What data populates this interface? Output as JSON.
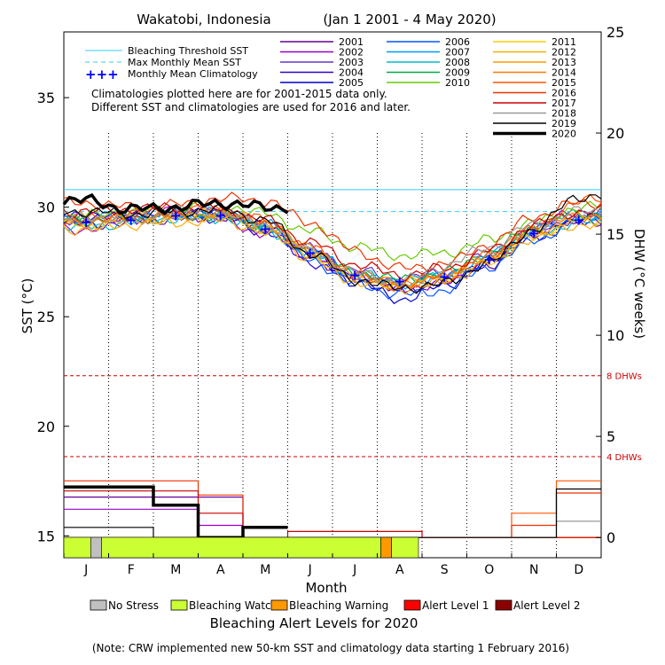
{
  "chart_data": {
    "type": "line",
    "title": "Wakatobi, Indonesia",
    "date_range": "(Jan 1 2001 - 4 May 2020)",
    "xlabel": "Month",
    "ylabel_left": "SST (°C)",
    "ylabel_right": "DHW (°C weeks)",
    "ylim_left": [
      14,
      38
    ],
    "ylim_right": [
      -1,
      25
    ],
    "left_ticks": [
      "15",
      "20",
      "25",
      "30",
      "35"
    ],
    "right_ticks": [
      "0",
      "5",
      "10",
      "15",
      "20",
      "25"
    ],
    "months": [
      "J",
      "F",
      "M",
      "A",
      "M",
      "J",
      "J",
      "A",
      "S",
      "O",
      "N",
      "D"
    ],
    "bleaching_threshold_sst": 30.8,
    "max_monthly_mean_sst": 29.8,
    "dhw_thresholds": [
      {
        "value": 4,
        "label": "4 DHWs"
      },
      {
        "value": 8,
        "label": "8 DHWs"
      }
    ],
    "legend_left": [
      {
        "label": "Bleaching Threshold SST",
        "color": "#33ccff",
        "style": "solid"
      },
      {
        "label": "Max Monthly Mean SST",
        "color": "#33ccff",
        "style": "dashed"
      },
      {
        "label": "Monthly Mean Climatology",
        "color": "#0000ff",
        "style": "plus"
      }
    ],
    "notes": [
      "Climatologies plotted here are for 2001-2015 data only.",
      "Different SST and climatologies are used for 2016 and later."
    ],
    "climatology": [
      29.3,
      29.4,
      29.6,
      29.6,
      29.0,
      27.9,
      26.9,
      26.6,
      26.8,
      27.6,
      28.8,
      29.4
    ],
    "series": [
      {
        "name": "2001",
        "color": "#660099",
        "width": 1.2,
        "sst": [
          29.2,
          29.3,
          29.5,
          29.6,
          29.0,
          27.7,
          26.8,
          26.4,
          26.7,
          27.4,
          28.7,
          29.3
        ],
        "dhw": [
          2,
          2,
          2,
          2,
          0,
          0,
          0,
          0,
          0,
          0,
          0,
          0
        ]
      },
      {
        "name": "2002",
        "color": "#9900cc",
        "width": 1.2,
        "sst": [
          29.0,
          29.5,
          29.8,
          29.4,
          28.8,
          27.8,
          26.9,
          26.3,
          26.5,
          27.6,
          29.1,
          29.8
        ],
        "dhw": [
          1.4,
          1.4,
          1.4,
          0.6,
          0,
          0,
          0,
          0,
          0,
          0,
          0,
          0
        ]
      },
      {
        "name": "2003",
        "color": "#6633cc",
        "width": 1.2,
        "sst": [
          29.4,
          29.6,
          29.7,
          29.8,
          29.2,
          28.1,
          27.1,
          26.7,
          27.0,
          27.8,
          29.0,
          29.5
        ],
        "dhw": [
          0,
          0,
          0,
          0,
          0,
          0,
          0,
          0,
          0,
          0,
          0,
          0
        ]
      },
      {
        "name": "2004",
        "color": "#3300cc",
        "width": 1.2,
        "sst": [
          29.6,
          29.5,
          29.6,
          29.5,
          28.9,
          27.5,
          26.7,
          26.2,
          26.6,
          27.5,
          28.7,
          29.4
        ],
        "dhw": [
          0,
          0,
          0,
          0,
          0,
          0,
          0,
          0,
          0,
          0,
          0,
          0
        ]
      },
      {
        "name": "2005",
        "color": "#0000cc",
        "width": 1.2,
        "sst": [
          29.5,
          29.7,
          29.8,
          29.7,
          29.1,
          27.9,
          26.6,
          25.8,
          26.4,
          27.5,
          28.9,
          29.5
        ],
        "dhw": [
          0,
          0,
          0,
          0,
          0,
          0,
          0,
          0,
          0,
          0,
          0,
          0
        ]
      },
      {
        "name": "2006",
        "color": "#0055ff",
        "width": 1.2,
        "sst": [
          29.3,
          29.4,
          29.6,
          29.7,
          29.0,
          27.6,
          26.5,
          26.0,
          26.2,
          27.3,
          28.5,
          29.4
        ],
        "dhw": [
          0,
          0,
          0,
          0,
          0,
          0,
          0,
          0,
          0,
          0,
          0,
          0
        ]
      },
      {
        "name": "2007",
        "color": "#0099ff",
        "width": 1.2,
        "sst": [
          29.5,
          29.6,
          29.6,
          29.8,
          29.2,
          28.0,
          26.9,
          26.5,
          26.8,
          27.8,
          29.0,
          29.6
        ],
        "dhw": [
          0,
          0,
          0,
          0,
          0,
          0,
          0,
          0,
          0,
          0,
          0,
          0
        ]
      },
      {
        "name": "2008",
        "color": "#00bbcc",
        "width": 1.2,
        "sst": [
          29.1,
          29.3,
          29.5,
          29.5,
          29.0,
          27.9,
          27.0,
          26.6,
          26.9,
          27.7,
          28.8,
          29.3
        ],
        "dhw": [
          0,
          0,
          0,
          0,
          0,
          0,
          0,
          0,
          0,
          0,
          0,
          0
        ]
      },
      {
        "name": "2009",
        "color": "#00aa44",
        "width": 1.2,
        "sst": [
          29.4,
          29.5,
          29.6,
          29.6,
          29.1,
          28.0,
          27.0,
          26.7,
          27.0,
          27.9,
          29.1,
          29.7
        ],
        "dhw": [
          0,
          0,
          0,
          0,
          0,
          0,
          0,
          0,
          0,
          0,
          0,
          0
        ]
      },
      {
        "name": "2010",
        "color": "#66cc00",
        "width": 1.2,
        "sst": [
          29.6,
          29.8,
          30.0,
          30.1,
          29.7,
          28.9,
          28.2,
          27.8,
          27.9,
          28.5,
          29.3,
          30.0
        ],
        "dhw": [
          0,
          0,
          0,
          0,
          0,
          0,
          0,
          0,
          0,
          0,
          0,
          0
        ]
      },
      {
        "name": "2011",
        "color": "#ffcc00",
        "width": 1.2,
        "sst": [
          29.2,
          29.4,
          29.5,
          29.6,
          29.0,
          27.8,
          26.8,
          26.4,
          26.7,
          27.6,
          28.7,
          29.4
        ],
        "dhw": [
          0,
          0,
          0,
          0,
          0,
          0,
          0,
          0,
          0,
          0,
          0,
          0
        ]
      },
      {
        "name": "2012",
        "color": "#ffaa00",
        "width": 1.2,
        "sst": [
          29.0,
          29.2,
          29.3,
          29.4,
          28.9,
          27.7,
          26.6,
          26.3,
          26.6,
          27.5,
          28.6,
          29.2
        ],
        "dhw": [
          0,
          0,
          0,
          0,
          0,
          0,
          0,
          0,
          0,
          0,
          0,
          0
        ]
      },
      {
        "name": "2013",
        "color": "#ff9900",
        "width": 1.2,
        "sst": [
          29.5,
          29.6,
          29.7,
          29.8,
          29.3,
          28.1,
          27.0,
          26.5,
          26.8,
          27.7,
          28.9,
          29.5
        ],
        "dhw": [
          0,
          0,
          0,
          0,
          0,
          0,
          0,
          0,
          0,
          0,
          0,
          0
        ]
      },
      {
        "name": "2014",
        "color": "#ff7700",
        "width": 1.2,
        "sst": [
          29.3,
          29.5,
          29.6,
          29.7,
          29.2,
          28.0,
          26.9,
          26.5,
          26.9,
          27.8,
          29.0,
          29.6
        ],
        "dhw": [
          0,
          0,
          0,
          0,
          0,
          0,
          0,
          0,
          0,
          0,
          0,
          0
        ]
      },
      {
        "name": "2015",
        "color": "#ff5500",
        "width": 1.2,
        "sst": [
          29.4,
          29.7,
          29.8,
          29.9,
          29.4,
          28.1,
          26.9,
          26.4,
          26.9,
          27.8,
          29.0,
          30.3
        ],
        "dhw": [
          0,
          0,
          0,
          0,
          0,
          0,
          0,
          0,
          0,
          0,
          1.2,
          2.8
        ]
      },
      {
        "name": "2016",
        "color": "#ee3300",
        "width": 1.2,
        "sst": [
          30.2,
          30.0,
          30.1,
          30.4,
          30.3,
          29.3,
          28.0,
          27.2,
          27.4,
          28.3,
          29.6,
          30.2
        ],
        "dhw": [
          2.8,
          2.8,
          2.8,
          2.1,
          0,
          0,
          0,
          0,
          0,
          0,
          0.6,
          2.2
        ]
      },
      {
        "name": "2017",
        "color": "#cc0000",
        "width": 1.2,
        "sst": [
          29.8,
          29.9,
          30.0,
          29.9,
          29.4,
          28.4,
          27.4,
          26.9,
          27.2,
          28.0,
          29.2,
          29.8
        ],
        "dhw": [
          2.3,
          2.3,
          2.3,
          1.2,
          0,
          0.3,
          0.3,
          0.3,
          0,
          0,
          0,
          0
        ]
      },
      {
        "name": "2018",
        "color": "#999999",
        "width": 1.2,
        "sst": [
          29.5,
          29.6,
          29.8,
          29.7,
          29.2,
          28.0,
          27.0,
          26.6,
          27.3,
          28.2,
          29.2,
          29.8
        ],
        "dhw": [
          0,
          0,
          0,
          0,
          0,
          0,
          0,
          0,
          0,
          0,
          0,
          0.8
        ]
      },
      {
        "name": "2019",
        "color": "#000000",
        "width": 1.2,
        "sst": [
          29.8,
          29.7,
          29.8,
          29.9,
          29.4,
          27.9,
          26.7,
          26.3,
          26.5,
          27.5,
          29.0,
          30.5
        ],
        "dhw": [
          0.5,
          0.5,
          0,
          0,
          0,
          0,
          0,
          0,
          0,
          0,
          0,
          2.4
        ]
      },
      {
        "name": "2020",
        "color": "#000000",
        "width": 3.5,
        "sst": [
          30.3,
          29.9,
          30.0,
          30.2,
          30.0
        ],
        "dhw": [
          2.5,
          2.5,
          1.6,
          0,
          0.5
        ]
      }
    ],
    "alert_band": {
      "segments": [
        {
          "from": 0.0,
          "to": 0.05,
          "level": "Bleaching Watch"
        },
        {
          "from": 0.05,
          "to": 0.07,
          "level": "No Stress"
        },
        {
          "from": 0.07,
          "to": 0.59,
          "level": "Bleaching Watch"
        },
        {
          "from": 0.59,
          "to": 0.61,
          "level": "Bleaching Warning"
        },
        {
          "from": 0.61,
          "to": 0.66,
          "level": "Bleaching Watch"
        }
      ]
    },
    "alert_legend": [
      {
        "label": "No Stress",
        "color": "#c0c0c0"
      },
      {
        "label": "Bleaching Watch",
        "color": "#ccff33"
      },
      {
        "label": "Bleaching Warning",
        "color": "#ff9900"
      },
      {
        "label": "Alert Level 1",
        "color": "#ff0000"
      },
      {
        "label": "Alert Level 2",
        "color": "#8b0000"
      }
    ],
    "alert_title": "Bleaching Alert Levels for 2020",
    "footnote": "(Note: CRW implemented new 50-km SST and climatology data starting 1 February 2016)"
  }
}
